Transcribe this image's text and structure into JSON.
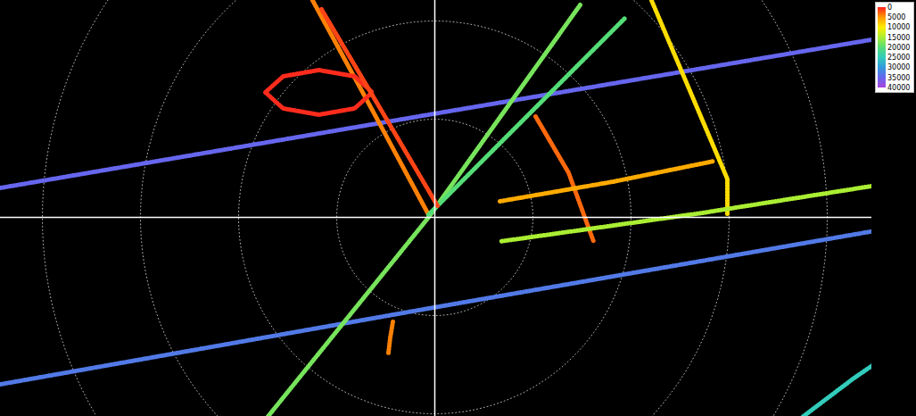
{
  "chart_data": {
    "type": "track",
    "tick_labels": false,
    "grid": true,
    "legend": "top-right",
    "xlim": [
      -487,
      490
    ],
    "ylim": [
      -223,
      243
    ],
    "rings": [
      110,
      220,
      330,
      440,
      550
    ],
    "colorbar": {
      "range": [
        0,
        40000
      ],
      "ticks": [
        0,
        5000,
        10000,
        15000,
        20000,
        25000,
        30000,
        35000,
        40000
      ],
      "colors": [
        "#ff2020",
        "#ff9900",
        "#ffee00",
        "#aaee33",
        "#55dd77",
        "#33ccbb",
        "#3399dd",
        "#6666ee",
        "#aa44dd"
      ]
    },
    "tracks": [
      {
        "altitude": 35000,
        "x": [
          -487,
          -7,
          513
        ],
        "y": [
          33,
          115,
          203
        ]
      },
      {
        "altitude": 33000,
        "x": [
          -487,
          -7,
          540
        ],
        "y": [
          -187,
          -102,
          -7
        ]
      },
      {
        "altitude": 18000,
        "x": [
          163,
          -7,
          -187
        ],
        "y": [
          238,
          0,
          -223
        ]
      },
      {
        "altitude": 4000,
        "x": [
          -137,
          -70,
          -7
        ],
        "y": [
          243,
          120,
          3
        ]
      },
      {
        "altitude": 500,
        "x": [
          -190,
          -170,
          -130,
          -90,
          -70,
          -90,
          -130,
          -170,
          -190
        ],
        "y": [
          140,
          158,
          165,
          158,
          140,
          122,
          115,
          122,
          140
        ]
      },
      {
        "altitude": 9000,
        "x": [
          243,
          328,
          328
        ],
        "y": [
          243,
          43,
          3
        ]
      },
      {
        "altitude": 20000,
        "x": [
          -7,
          100,
          213
        ],
        "y": [
          3,
          110,
          223
        ]
      },
      {
        "altitude": 3000,
        "x": [
          113,
          150,
          178
        ],
        "y": [
          113,
          50,
          -27
        ]
      },
      {
        "altitude": 6000,
        "x": [
          73,
          200,
          313
        ],
        "y": [
          18,
          40,
          63
        ]
      },
      {
        "altitude": 15000,
        "x": [
          540,
          300,
          73
        ],
        "y": [
          43,
          5,
          -27
        ]
      },
      {
        "altitude": 4000,
        "x": [
          -47,
          -50,
          -52
        ],
        "y": [
          -117,
          -135,
          -152
        ]
      },
      {
        "altitude": 1500,
        "x": [
          -127,
          -60,
          3
        ],
        "y": [
          233,
          120,
          13
        ]
      },
      {
        "altitude": 25000,
        "x": [
          413,
          470,
          533
        ],
        "y": [
          -223,
          -180,
          -137
        ]
      }
    ]
  }
}
